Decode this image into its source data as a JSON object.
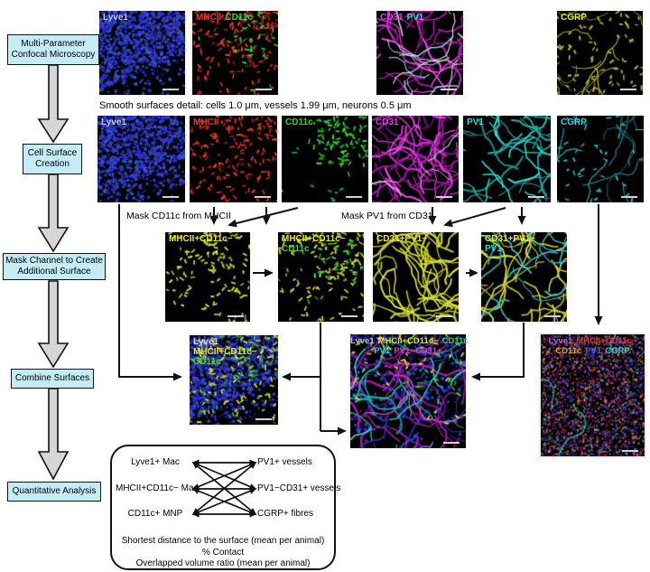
{
  "flowchart": {
    "steps": [
      {
        "label": "Multi-Parameter Confocal Microscopy"
      },
      {
        "label": "Cell Surface Creation"
      },
      {
        "label": "Mask Channel to Create Additional Surface"
      },
      {
        "label": "Combine Surfaces"
      },
      {
        "label": "Quantitative Analysis"
      }
    ]
  },
  "annotations": {
    "smooth_detail": "Smooth surfaces detail: cells 1.0 μm, vessels 1.99 μm, neurons 0.5 μm",
    "mask_left": "Mask CD11c from MHCII",
    "mask_right": "Mask PV1 from CD31"
  },
  "panels": [
    {
      "id": "r1p1",
      "pattern": "cells-blue",
      "labels": [
        [
          {
            "t": "Lyve1",
            "c": "#c6cada"
          }
        ]
      ]
    },
    {
      "id": "r1p2",
      "pattern": "specks-red-green",
      "labels": [
        [
          {
            "t": "MHCII",
            "c": "#e53528"
          },
          {
            "t": "CD11c",
            "c": "#3bd43b"
          }
        ]
      ]
    },
    {
      "id": "r1p3",
      "pattern": "vessels-magenta-mix",
      "labels": [
        [
          {
            "t": "CD31",
            "c": "#e43ae4"
          },
          {
            "t": "PV1",
            "c": "#3cd6e0"
          }
        ]
      ]
    },
    {
      "id": "r1p4",
      "pattern": "fibres-yellow",
      "labels": [
        [
          {
            "t": "CGRP",
            "c": "#e8e832"
          }
        ]
      ]
    },
    {
      "id": "r2p1",
      "pattern": "cells-blue",
      "labels": [
        [
          {
            "t": "Lyve1",
            "c": "#c6cada"
          }
        ]
      ]
    },
    {
      "id": "r2p2",
      "pattern": "specks-red",
      "labels": [
        [
          {
            "t": "MHCII",
            "c": "#e53528"
          }
        ]
      ]
    },
    {
      "id": "r2p3",
      "pattern": "specks-green",
      "labels": [
        [
          {
            "t": "CD11c",
            "c": "#3bd43b"
          }
        ]
      ]
    },
    {
      "id": "r2p4",
      "pattern": "vessels-magenta",
      "labels": [
        [
          {
            "t": "CD31",
            "c": "#e43ae4"
          }
        ]
      ]
    },
    {
      "id": "r2p5",
      "pattern": "vessels-cyan",
      "labels": [
        [
          {
            "t": "PV1",
            "c": "#3cd6d6"
          }
        ]
      ]
    },
    {
      "id": "r2p6",
      "pattern": "fibres-cyan",
      "labels": [
        [
          {
            "t": "CGRP",
            "c": "#3cd6d6"
          }
        ]
      ]
    },
    {
      "id": "r3p1",
      "pattern": "specks-yellow",
      "labels": [
        [
          {
            "t": "MHCII+CD11c−",
            "c": "#e8e832"
          }
        ]
      ]
    },
    {
      "id": "r3p2",
      "pattern": "specks-yellow-green",
      "labels": [
        [
          {
            "t": "MHCII+CD11c−",
            "c": "#e8e832"
          }
        ],
        [
          {
            "t": "CD11c",
            "c": "#3bd43b"
          }
        ]
      ]
    },
    {
      "id": "r3p3",
      "pattern": "vessels-yellow",
      "labels": [
        [
          {
            "t": "CD31+PV1−",
            "c": "#e8e832"
          }
        ]
      ]
    },
    {
      "id": "r3p4",
      "pattern": "vessels-yellow-cyan",
      "labels": [
        [
          {
            "t": "CD31+PV1−",
            "c": "#e8e832"
          }
        ],
        [
          {
            "t": "PV1",
            "c": "#3cd6d6"
          }
        ]
      ]
    },
    {
      "id": "r4p1",
      "pattern": "combo-cells-specks",
      "labels": [
        [
          {
            "t": "Lyve1",
            "c": "#d8dce8"
          }
        ],
        [
          {
            "t": "MHCII+CD11c−",
            "c": "#e8e832"
          }
        ],
        [
          {
            "t": "CD11c",
            "c": "#3bd43b"
          }
        ]
      ]
    },
    {
      "id": "r4p2",
      "pattern": "combo-vessels-multi",
      "center": true,
      "labels": [
        [
          {
            "t": "Lyve1",
            "c": "#c6cada"
          },
          {
            "t": "MHCII+CD11c−",
            "c": "#e8e832"
          },
          {
            "t": "CD11c",
            "c": "#3bd43b"
          }
        ],
        [
          {
            "t": "PV1",
            "c": "#3cd6d6"
          },
          {
            "t": "PV1−CD31+",
            "c": "#e43ae4"
          }
        ]
      ]
    },
    {
      "id": "r4p3",
      "pattern": "mosaic-multi",
      "center": true,
      "framed": true,
      "labels": [
        [
          {
            "t": "Lyve1",
            "c": "#d05ce0"
          },
          {
            "t": "MHCII+CD11c−",
            "c": "#e63232"
          }
        ],
        [
          {
            "t": "CD11c",
            "c": "#e8a232"
          },
          {
            "t": "PV1",
            "c": "#5858e8"
          },
          {
            "t": "CGRP",
            "c": "#38d6d6"
          }
        ]
      ]
    }
  ],
  "quant": {
    "left": [
      "Lyve1+ Mac",
      "MHCII+CD11c− Mac",
      "CD11c+ MNP"
    ],
    "right": [
      "PV1+ vessels",
      "PV1−CD31+ vessels",
      "CGRP+ fibres"
    ],
    "metrics": [
      "Shortest distance to the surface (mean per animal)",
      "% Contact",
      "Overlapped volume ratio (mean per animal)"
    ]
  },
  "colors": {
    "flow_box_fill": "#c4ecf6",
    "flow_box_border": "#111111",
    "block_arrow_fill": "#d6d6d6",
    "connector": "#111111",
    "panel_bg": "#000000"
  }
}
